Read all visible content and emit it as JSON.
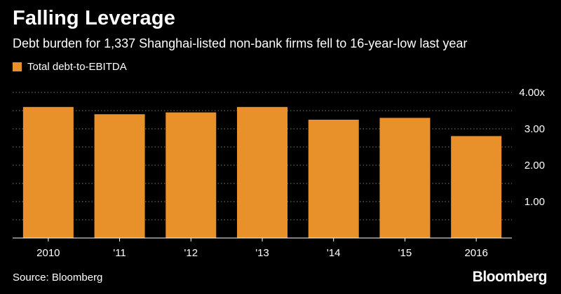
{
  "title": "Falling Leverage",
  "subtitle": "Debt burden for 1,337 Shanghai-listed non-bank firms fell to 16-year-low last year",
  "source": "Source: Bloomberg",
  "brand": "Bloomberg",
  "colors": {
    "background": "#000000",
    "bar": "#E8912A",
    "grid": "#7a7a7a",
    "text": "#ffffff"
  },
  "chart_data": {
    "type": "bar",
    "categories": [
      "2010",
      "'11",
      "'12",
      "'13",
      "'14",
      "'15",
      "2016"
    ],
    "series": [
      {
        "name": "Total debt-to-EBITDA",
        "values": [
          3.6,
          3.4,
          3.45,
          3.6,
          3.25,
          3.3,
          2.8
        ]
      }
    ],
    "y_ticks": [
      {
        "value": 4,
        "label": "4.00x"
      },
      {
        "value": 3,
        "label": "3.00"
      },
      {
        "value": 2,
        "label": "2.00"
      },
      {
        "value": 1,
        "label": "1.00"
      }
    ],
    "ylim": [
      0,
      4
    ],
    "grid": true,
    "legend_position": "top-left",
    "y_axis_side": "right"
  }
}
